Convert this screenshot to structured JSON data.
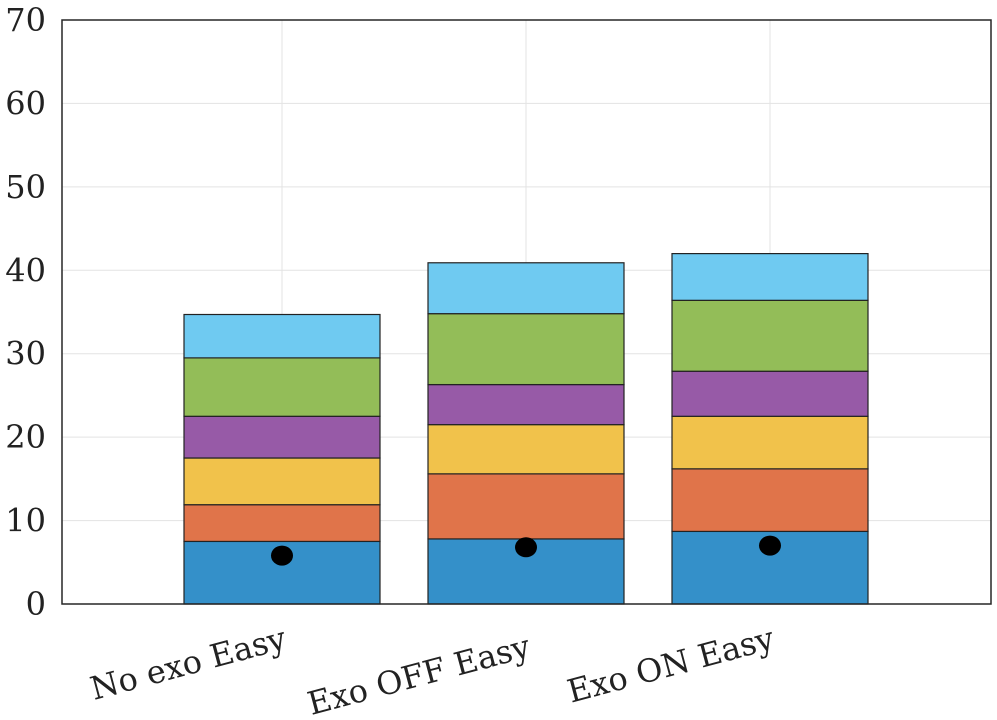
{
  "chart_data": {
    "type": "bar",
    "stacked": true,
    "categories": [
      "No exo Easy",
      "Exo OFF Easy",
      "Exo ON Easy"
    ],
    "series": [
      {
        "color": "#3490c9",
        "values": [
          7.5,
          7.8,
          8.7
        ]
      },
      {
        "color": "#e0744a",
        "values": [
          4.4,
          7.8,
          7.5
        ]
      },
      {
        "color": "#f1c24b",
        "values": [
          5.6,
          5.9,
          6.3
        ]
      },
      {
        "color": "#975aa7",
        "values": [
          5.0,
          4.8,
          5.4
        ]
      },
      {
        "color": "#93bd58",
        "values": [
          7.0,
          8.5,
          8.5
        ]
      },
      {
        "color": "#6fcaf1",
        "values": [
          5.2,
          6.1,
          5.6
        ]
      }
    ],
    "markers": {
      "color": "#000000",
      "values": [
        5.8,
        6.8,
        7.0
      ]
    },
    "ylim": [
      0,
      70
    ],
    "yticks": [
      "0",
      "10",
      "20",
      "30",
      "40",
      "50",
      "60",
      "70"
    ],
    "grid": true,
    "xlabel": "",
    "ylabel": "",
    "title": ""
  }
}
